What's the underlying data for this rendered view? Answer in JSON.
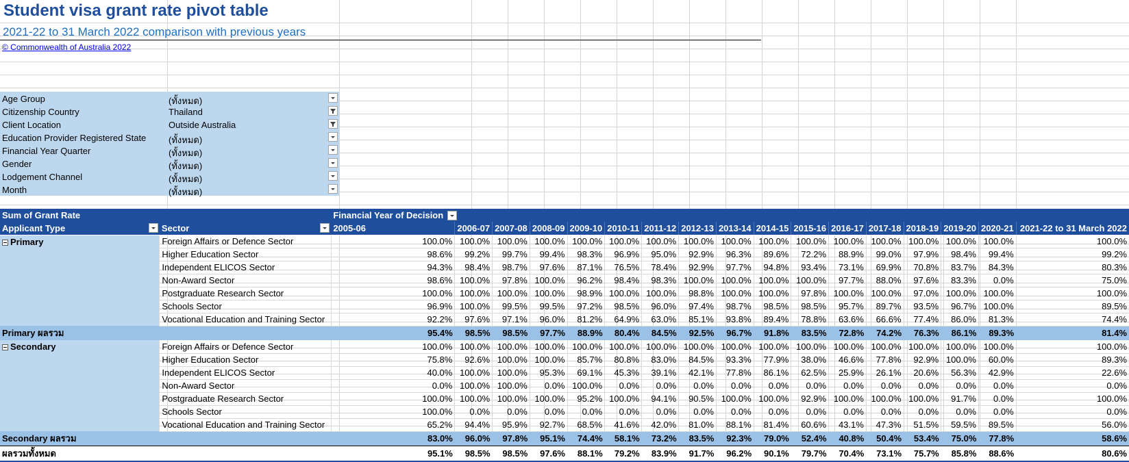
{
  "title": "Student visa grant rate pivot table",
  "subtitle": "2021-22 to 31 March 2022 comparison with previous years",
  "copyright": "© Commonwealth of Australia 2022",
  "filters": [
    {
      "label": "Age Group",
      "value": "(ทั้งหมด)",
      "filtered": false
    },
    {
      "label": "Citizenship Country",
      "value": "Thailand",
      "filtered": true
    },
    {
      "label": "Client Location",
      "value": "Outside Australia",
      "filtered": true
    },
    {
      "label": "Education Provider Registered State",
      "value": "(ทั้งหมด)",
      "filtered": false
    },
    {
      "label": "Financial Year Quarter",
      "value": "(ทั้งหมด)",
      "filtered": false
    },
    {
      "label": "Gender",
      "value": "(ทั้งหมด)",
      "filtered": false
    },
    {
      "label": "Lodgement Channel",
      "value": "(ทั้งหมด)",
      "filtered": false
    },
    {
      "label": "Month",
      "value": "(ทั้งหมด)",
      "filtered": false
    }
  ],
  "pivot": {
    "measure": "Sum of Grant Rate",
    "column_field": "Financial Year of Decision",
    "row_field_1": "Applicant Type",
    "row_field_2": "Sector",
    "years": [
      "2005-06",
      "2006-07",
      "2007-08",
      "2008-09",
      "2009-10",
      "2010-11",
      "2011-12",
      "2012-13",
      "2013-14",
      "2014-15",
      "2015-16",
      "2016-17",
      "2017-18",
      "2018-19",
      "2019-20",
      "2020-21",
      "2021-22 to 31 March 2022"
    ],
    "groups": [
      {
        "name": "Primary",
        "rows": [
          {
            "sector": "Foreign Affairs or Defence Sector",
            "values": [
              "100.0%",
              "100.0%",
              "100.0%",
              "100.0%",
              "100.0%",
              "100.0%",
              "100.0%",
              "100.0%",
              "100.0%",
              "100.0%",
              "100.0%",
              "100.0%",
              "100.0%",
              "100.0%",
              "100.0%",
              "100.0%",
              "100.0%"
            ]
          },
          {
            "sector": "Higher Education Sector",
            "values": [
              "98.6%",
              "99.2%",
              "99.7%",
              "99.4%",
              "98.3%",
              "96.9%",
              "95.0%",
              "92.9%",
              "96.3%",
              "89.6%",
              "72.2%",
              "88.9%",
              "99.0%",
              "97.9%",
              "98.4%",
              "99.4%",
              "99.2%"
            ]
          },
          {
            "sector": "Independent ELICOS Sector",
            "values": [
              "94.3%",
              "98.4%",
              "98.7%",
              "97.6%",
              "87.1%",
              "76.5%",
              "78.4%",
              "92.9%",
              "97.7%",
              "94.8%",
              "93.4%",
              "73.1%",
              "69.9%",
              "70.8%",
              "83.7%",
              "84.3%",
              "80.3%"
            ]
          },
          {
            "sector": "Non-Award Sector",
            "values": [
              "98.6%",
              "100.0%",
              "97.8%",
              "100.0%",
              "96.2%",
              "98.4%",
              "98.3%",
              "100.0%",
              "100.0%",
              "100.0%",
              "100.0%",
              "97.7%",
              "88.0%",
              "97.6%",
              "83.3%",
              "0.0%",
              "75.0%"
            ]
          },
          {
            "sector": "Postgraduate Research Sector",
            "values": [
              "100.0%",
              "100.0%",
              "100.0%",
              "100.0%",
              "98.9%",
              "100.0%",
              "100.0%",
              "98.8%",
              "100.0%",
              "100.0%",
              "97.8%",
              "100.0%",
              "100.0%",
              "97.0%",
              "100.0%",
              "100.0%",
              "100.0%"
            ]
          },
          {
            "sector": "Schools Sector",
            "values": [
              "96.9%",
              "100.0%",
              "99.5%",
              "99.5%",
              "97.2%",
              "98.5%",
              "96.0%",
              "97.4%",
              "98.7%",
              "98.5%",
              "98.5%",
              "95.7%",
              "89.7%",
              "93.5%",
              "96.7%",
              "100.0%",
              "89.5%"
            ]
          },
          {
            "sector": "Vocational Education and Training Sector",
            "values": [
              "92.2%",
              "97.6%",
              "97.1%",
              "96.0%",
              "81.2%",
              "64.9%",
              "63.0%",
              "85.1%",
              "93.8%",
              "89.4%",
              "78.8%",
              "63.6%",
              "66.6%",
              "77.4%",
              "86.0%",
              "81.3%",
              "74.4%"
            ]
          }
        ],
        "total_label": "Primary ผลรวม",
        "total": [
          "95.4%",
          "98.5%",
          "98.5%",
          "97.7%",
          "88.9%",
          "80.4%",
          "84.5%",
          "92.5%",
          "96.7%",
          "91.8%",
          "83.5%",
          "72.8%",
          "74.2%",
          "76.3%",
          "86.1%",
          "89.3%",
          "81.4%"
        ]
      },
      {
        "name": "Secondary",
        "rows": [
          {
            "sector": "Foreign Affairs or Defence Sector",
            "values": [
              "100.0%",
              "100.0%",
              "100.0%",
              "100.0%",
              "100.0%",
              "100.0%",
              "100.0%",
              "100.0%",
              "100.0%",
              "100.0%",
              "100.0%",
              "100.0%",
              "100.0%",
              "100.0%",
              "100.0%",
              "100.0%",
              "100.0%"
            ]
          },
          {
            "sector": "Higher Education Sector",
            "values": [
              "75.8%",
              "92.6%",
              "100.0%",
              "100.0%",
              "85.7%",
              "80.8%",
              "83.0%",
              "84.5%",
              "93.3%",
              "77.9%",
              "38.0%",
              "46.6%",
              "77.8%",
              "92.9%",
              "100.0%",
              "60.0%",
              "89.3%"
            ]
          },
          {
            "sector": "Independent ELICOS Sector",
            "values": [
              "40.0%",
              "100.0%",
              "100.0%",
              "95.3%",
              "69.1%",
              "45.3%",
              "39.1%",
              "42.1%",
              "77.8%",
              "86.1%",
              "62.5%",
              "25.9%",
              "26.1%",
              "20.6%",
              "56.3%",
              "42.9%",
              "22.6%"
            ]
          },
          {
            "sector": "Non-Award Sector",
            "values": [
              "0.0%",
              "100.0%",
              "100.0%",
              "0.0%",
              "100.0%",
              "0.0%",
              "0.0%",
              "0.0%",
              "0.0%",
              "0.0%",
              "0.0%",
              "0.0%",
              "0.0%",
              "0.0%",
              "0.0%",
              "0.0%",
              "0.0%"
            ]
          },
          {
            "sector": "Postgraduate Research Sector",
            "values": [
              "100.0%",
              "100.0%",
              "100.0%",
              "100.0%",
              "95.2%",
              "100.0%",
              "94.1%",
              "90.5%",
              "100.0%",
              "100.0%",
              "92.9%",
              "100.0%",
              "100.0%",
              "100.0%",
              "91.7%",
              "0.0%",
              "100.0%"
            ]
          },
          {
            "sector": "Schools Sector",
            "values": [
              "100.0%",
              "0.0%",
              "0.0%",
              "0.0%",
              "0.0%",
              "0.0%",
              "0.0%",
              "0.0%",
              "0.0%",
              "0.0%",
              "0.0%",
              "0.0%",
              "0.0%",
              "0.0%",
              "0.0%",
              "0.0%",
              "0.0%"
            ]
          },
          {
            "sector": "Vocational Education and Training Sector",
            "values": [
              "65.2%",
              "94.4%",
              "95.9%",
              "92.7%",
              "68.5%",
              "41.6%",
              "42.0%",
              "81.0%",
              "88.1%",
              "81.4%",
              "60.6%",
              "43.1%",
              "47.3%",
              "51.5%",
              "59.5%",
              "89.5%",
              "56.0%"
            ]
          }
        ],
        "total_label": "Secondary ผลรวม",
        "total": [
          "83.0%",
          "96.0%",
          "97.8%",
          "95.1%",
          "74.4%",
          "58.1%",
          "73.2%",
          "83.5%",
          "92.3%",
          "79.0%",
          "52.4%",
          "40.8%",
          "50.4%",
          "53.4%",
          "75.0%",
          "77.8%",
          "58.6%"
        ]
      }
    ],
    "grand_total_label": "ผลรวมทั้งหมด",
    "grand_total": [
      "95.1%",
      "98.5%",
      "98.5%",
      "97.6%",
      "88.1%",
      "79.2%",
      "83.9%",
      "91.7%",
      "96.2%",
      "90.1%",
      "79.7%",
      "70.4%",
      "73.1%",
      "75.7%",
      "85.8%",
      "88.6%",
      "80.6%"
    ]
  }
}
